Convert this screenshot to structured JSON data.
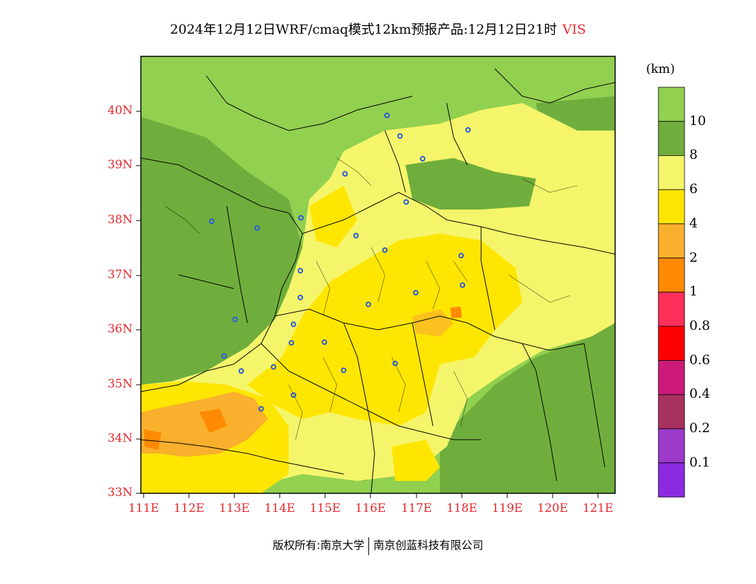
{
  "title": "2024年12月12日WRF/cmaq模式12km预报产品:12月12日21时",
  "variable": "VIS",
  "unit": "(km)",
  "colors": {
    "lightgreen": "#92d050",
    "darkgreen": "#6fae3c",
    "paleyellow": "#f5f56b",
    "yellow": "#ffe600",
    "lightorange": "#f9b02c",
    "orange": "#ff8a00",
    "pink": "#ff2f5a",
    "red": "#ff0000",
    "magenta": "#cc1a7a",
    "wine": "#a8315e",
    "violet": "#9b3acb",
    "purple": "#8a2be2",
    "city": "#2a5bd7",
    "axis_label": "#e8282e"
  },
  "legend": {
    "colors": [
      "#92d050",
      "#6fae3c",
      "#f5f56b",
      "#ffe600",
      "#f9b02c",
      "#ff8a00",
      "#ff2f5a",
      "#ff0000",
      "#cc1a7a",
      "#a8315e",
      "#9b3acb",
      "#8a2be2"
    ],
    "labels": [
      "10",
      "8",
      "6",
      "4",
      "2",
      "1",
      "0.8",
      "0.6",
      "0.4",
      "0.2",
      "0.1"
    ]
  },
  "axes": {
    "lat_labels": [
      "40N",
      "39N",
      "38N",
      "37N",
      "36N",
      "35N",
      "34N",
      "33N"
    ],
    "lon_labels": [
      "111E",
      "112E",
      "113E",
      "114E",
      "115E",
      "116E",
      "117E",
      "118E",
      "119E",
      "120E",
      "121E"
    ]
  },
  "footer": {
    "left": "版权所有:南京大学",
    "right": "南京创蓝科技有限公司"
  }
}
